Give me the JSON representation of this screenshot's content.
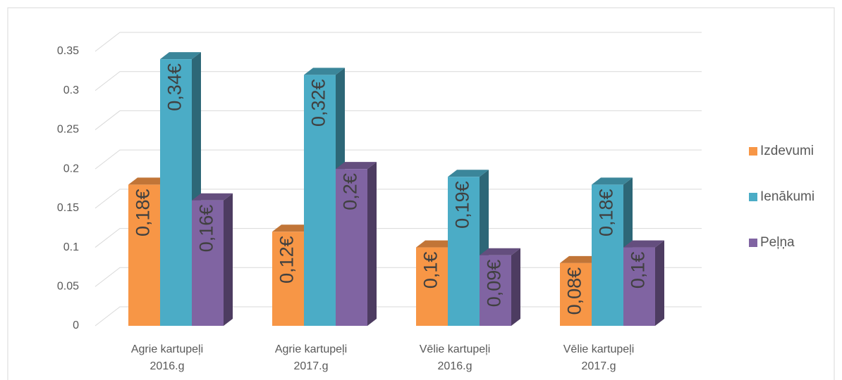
{
  "chart_data": {
    "type": "bar3d",
    "categories": [
      "Agrie kartupeļi 2016.g",
      "Agrie kartupeļi 2017.g",
      "Vēlie kartupeļi 2016.g",
      "Vēlie kartupeļi 2017.g"
    ],
    "series": [
      {
        "name": "Izdevumi",
        "color": "#f79646",
        "values": [
          0.18,
          0.12,
          0.1,
          0.08
        ],
        "value_labels": [
          "0,18€",
          "0,12€",
          "0,1€",
          "0,08€"
        ]
      },
      {
        "name": "Ienākumi",
        "color": "#4bacc6",
        "values": [
          0.34,
          0.32,
          0.19,
          0.18
        ],
        "value_labels": [
          "0,34€",
          "0,32€",
          "0,19€",
          "0,18€"
        ]
      },
      {
        "name": "Peļņa",
        "color": "#8064a2",
        "values": [
          0.16,
          0.2,
          0.09,
          0.1
        ],
        "value_labels": [
          "0,16€",
          "0,2€",
          "0,09€",
          "0,1€"
        ]
      }
    ],
    "ylim": [
      0,
      0.35
    ],
    "yticks": [
      0,
      0.05,
      0.1,
      0.15,
      0.2,
      0.25,
      0.3,
      0.35
    ],
    "grid": true,
    "legend": "right"
  }
}
